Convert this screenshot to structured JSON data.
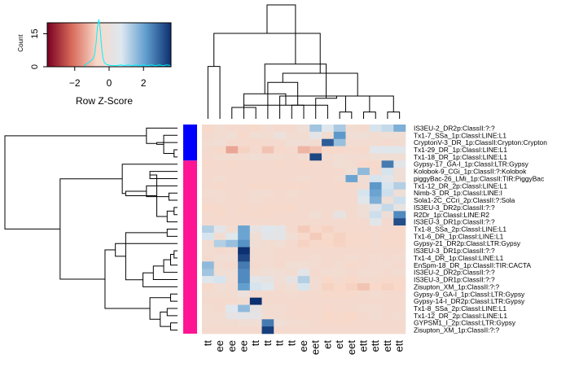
{
  "chart_data": {
    "type": "heatmap",
    "key": {
      "title": "Color Key and Histogram",
      "xlabel": "Row Z-Score",
      "ylabel": "Count",
      "xticks": [
        -2,
        0,
        2
      ],
      "yticks": [
        0,
        15
      ],
      "xlim": [
        -3.6,
        3.6
      ],
      "colors": [
        "#7a0020",
        "#d96b5c",
        "#f8d8c8",
        "#dde8f0",
        "#5e9ccd",
        "#0c3070"
      ],
      "histogram_color": "#00f5ff",
      "histogram_peak_z": -0.6
    },
    "columns": [
      "tt",
      "ee",
      "ee",
      "ee",
      "tt",
      "tt",
      "tt",
      "tt",
      "ee",
      "eet",
      "et",
      "et",
      "eet",
      "ett",
      "ett",
      "ett",
      "ett"
    ],
    "rows": [
      "IS3EU-2_DR2p:ClassII:?:?",
      "Tx1-7_SSa_1p:ClassI:LINE:L1",
      "CryptonV-3_DR_1p:ClassII:Crypton:Crypton",
      "Tx1-29_DR_1p:ClassI:LINE:L1",
      "Tx1-18_DR_1p:ClassI:LINE:L1",
      "Gypsy-17_GA-I_1p:ClassI:LTR:Gypsy",
      "Kolobok-9_CGi_1p:ClassII:?:Kolobok",
      "piggyBac-26_LMi_1p:ClassII:TIR:PiggyBac",
      "Tx1-12_DR_2p:ClassI:LINE:L1",
      "Nimb-3_DR_1p:ClassI:LINE:I",
      "Sola1-2C_CCri_2p:ClassII:?:Sola",
      "IS3EU-3_DR2p:ClassII:?:?",
      "R2Dr_1p:ClassI:LINE:R2",
      "IS3EU-3_DR1p:ClassII:?:?",
      "Tx1-8_SSa_2p:ClassI:LINE:L1",
      "Tx1-6_DR_1p:ClassI:LINE:L1",
      "Gypsy-21_DR2p:ClassI:LTR:Gypsy",
      "IS3EU-3_DR1p:ClassII:?:?",
      "Tx1-4_DR_1p:ClassI:LINE:L1",
      "EnSpm-18_DR_1p:ClassII:TIR:CACTA",
      "IS3EU-2_DR2p:ClassII:?:?",
      "IS3EU-3_DR1p:ClassII:?:?",
      "Zisupton_XM_1p:ClassII:?:?",
      "Gypsy-9_GA-I_1p:ClassI:LTR:Gypsy",
      "Gypsy-14-I_DR2p:ClassI:LTR:Gypsy",
      "Tx1-8_SSa_2p:ClassI:LINE:L1",
      "Tx1-12_DR_2p:ClassI:LINE:L1",
      "GYPSM1_I_2p:ClassI:LTR:Gypsy",
      "Zisupton_XM_1p:ClassII:?:?"
    ],
    "row_groups": [
      {
        "color": "#0000ff",
        "rows": 5
      },
      {
        "color": "#ff1493",
        "rows": 24
      }
    ],
    "values": [
      [
        -0.6,
        -0.4,
        -0.5,
        -0.5,
        -0.6,
        -0.4,
        -0.5,
        -0.5,
        -0.2,
        1.4,
        0.6,
        1.3,
        -0.4,
        -0.5,
        0.8,
        1.0,
        1.8
      ],
      [
        -0.5,
        -0.4,
        -0.3,
        -0.6,
        -0.3,
        -0.4,
        0.0,
        -0.4,
        -0.4,
        0.4,
        -0.4,
        2.2,
        -0.3,
        -0.2,
        -0.4,
        -0.2,
        -0.3
      ],
      [
        -0.4,
        -0.3,
        -0.5,
        -0.5,
        -0.6,
        -0.5,
        -0.5,
        -0.3,
        -0.3,
        -0.4,
        3.0,
        1.5,
        -0.4,
        -0.4,
        -0.4,
        -0.5,
        -0.4
      ],
      [
        -0.5,
        -0.6,
        -1.4,
        -0.8,
        -0.5,
        -1.0,
        -0.6,
        -0.5,
        -1.2,
        -1.0,
        -0.6,
        -0.6,
        -0.5,
        -0.6,
        0.5,
        0.6,
        0.5
      ],
      [
        -0.5,
        -0.4,
        -0.4,
        -0.4,
        -0.3,
        -0.4,
        -0.4,
        -0.5,
        -0.4,
        3.3,
        -0.4,
        -0.3,
        -0.4,
        -0.4,
        -0.3,
        -0.3,
        -0.3
      ],
      [
        -0.6,
        -0.5,
        -0.6,
        -0.5,
        -0.5,
        -0.5,
        -0.6,
        -0.5,
        -0.6,
        -0.5,
        -0.5,
        -0.3,
        -0.4,
        -0.6,
        -0.6,
        2.6,
        0.4
      ],
      [
        -0.5,
        -0.5,
        -0.5,
        -0.5,
        -0.5,
        -0.5,
        -0.5,
        -0.5,
        -0.5,
        -0.5,
        -0.5,
        -0.5,
        -0.2,
        1.6,
        -0.5,
        0.8,
        -0.2
      ],
      [
        -0.5,
        -0.4,
        -0.5,
        -0.5,
        -0.5,
        -0.5,
        -0.5,
        -0.5,
        -0.4,
        -0.5,
        -0.5,
        -0.4,
        2.0,
        -0.3,
        0.8,
        0.4,
        -0.2
      ],
      [
        -0.5,
        -0.6,
        -0.5,
        -0.5,
        -0.6,
        -0.6,
        -0.6,
        -0.6,
        -0.6,
        -0.5,
        -0.5,
        -0.6,
        -0.5,
        -0.4,
        2.2,
        0.8,
        1.2
      ],
      [
        -0.4,
        -0.4,
        -0.5,
        -0.5,
        -0.4,
        -0.4,
        -0.5,
        -0.4,
        -0.5,
        -0.5,
        -0.5,
        -0.5,
        -0.5,
        0.8,
        2.0,
        0.9,
        -0.2
      ],
      [
        -0.5,
        -0.4,
        -0.5,
        -0.5,
        -0.4,
        -0.5,
        -0.5,
        -0.5,
        -0.5,
        -0.5,
        -0.5,
        -0.5,
        -0.5,
        0.5,
        1.8,
        -0.2,
        0.9
      ],
      [
        -0.6,
        -0.6,
        -0.5,
        -0.6,
        -0.5,
        -0.6,
        -0.6,
        -0.6,
        -0.5,
        -0.5,
        -0.5,
        -0.5,
        -0.5,
        -0.2,
        0.4,
        1.0,
        0.2
      ],
      [
        -0.5,
        -0.6,
        -0.5,
        -0.5,
        -0.6,
        -0.6,
        -0.5,
        -0.5,
        -0.5,
        -0.3,
        -0.5,
        0.2,
        -0.5,
        -0.2,
        0.9,
        -0.2,
        2.4
      ],
      [
        -0.5,
        -0.5,
        -0.5,
        -0.5,
        -0.5,
        -0.5,
        -0.5,
        -0.5,
        -0.5,
        -0.5,
        -0.5,
        -0.5,
        -0.5,
        -0.5,
        0.5,
        -0.5,
        3.2
      ],
      [
        1.2,
        0.4,
        -0.4,
        2.0,
        0.2,
        0.6,
        0.4,
        -0.5,
        -0.9,
        -0.6,
        -0.8,
        -0.5,
        -0.6,
        -0.5,
        -0.5,
        -0.5,
        -0.6
      ],
      [
        0.8,
        -0.4,
        0.6,
        2.0,
        -0.3,
        0.4,
        0.4,
        -0.3,
        -0.6,
        -0.9,
        -0.6,
        -0.8,
        -0.6,
        -0.6,
        -0.5,
        -0.6,
        -0.6
      ],
      [
        -0.4,
        1.2,
        1.5,
        2.3,
        -0.3,
        -0.4,
        -0.3,
        -0.5,
        -0.8,
        -0.6,
        -0.7,
        -0.8,
        -0.6,
        -0.6,
        -0.5,
        -0.6,
        -0.6
      ],
      [
        -0.4,
        -0.5,
        -0.4,
        3.6,
        -0.4,
        -0.4,
        -0.5,
        -0.5,
        -0.5,
        -0.5,
        -0.5,
        -0.5,
        -0.5,
        -0.5,
        -0.5,
        -0.5,
        -0.5
      ],
      [
        -0.5,
        -0.3,
        -0.3,
        3.3,
        -0.4,
        -0.4,
        -0.5,
        -0.5,
        -0.5,
        -0.4,
        -0.5,
        -0.5,
        -0.4,
        -0.5,
        -0.4,
        -0.5,
        -0.4
      ],
      [
        1.6,
        -0.4,
        -0.5,
        2.6,
        -0.5,
        -0.4,
        -0.5,
        -0.3,
        -0.3,
        -0.4,
        -0.5,
        -0.4,
        -0.6,
        -0.5,
        -0.4,
        -0.4,
        -0.5
      ],
      [
        1.4,
        -0.3,
        -0.2,
        2.4,
        -0.4,
        -0.2,
        -0.3,
        -0.4,
        0.4,
        -0.5,
        -0.4,
        -0.4,
        -0.5,
        -0.4,
        -0.4,
        -0.5,
        -0.4
      ],
      [
        0.6,
        0.8,
        -0.3,
        2.4,
        0.4,
        0.2,
        -0.3,
        0.2,
        1.2,
        -0.4,
        -0.7,
        -0.5,
        -0.7,
        -0.5,
        -0.5,
        -0.6,
        -0.6
      ],
      [
        -0.6,
        -0.3,
        -0.4,
        2.1,
        0.8,
        0.6,
        -0.4,
        -0.3,
        0.8,
        -0.4,
        -0.8,
        -0.7,
        -0.8,
        -1.0,
        -0.7,
        -0.8,
        -0.7
      ],
      [
        -0.4,
        -0.4,
        -0.4,
        0.0,
        -0.5,
        -0.5,
        -0.5,
        -0.4,
        -0.5,
        -0.5,
        -0.6,
        -0.6,
        -0.6,
        -0.5,
        -0.4,
        -0.5,
        -0.5
      ],
      [
        -0.5,
        -0.5,
        -0.5,
        -0.4,
        3.6,
        -0.5,
        -0.5,
        -0.5,
        -0.5,
        -0.5,
        -0.5,
        -0.5,
        -0.5,
        -0.5,
        -0.5,
        -0.5,
        -0.5
      ],
      [
        -0.4,
        -0.5,
        0.6,
        1.6,
        0.2,
        -0.4,
        -0.4,
        -0.5,
        -0.6,
        -0.5,
        -0.6,
        -0.5,
        -0.5,
        -0.4,
        -0.4,
        -0.5,
        -0.5
      ],
      [
        -0.4,
        -0.4,
        0.3,
        0.4,
        0.3,
        -0.4,
        -0.4,
        -0.5,
        -0.6,
        -0.5,
        -0.7,
        -0.6,
        -0.7,
        -0.5,
        -0.4,
        -0.5,
        -0.4
      ],
      [
        -0.4,
        -0.4,
        -0.4,
        -0.3,
        -0.3,
        2.6,
        -0.2,
        -0.4,
        -0.4,
        -0.5,
        -0.6,
        -0.6,
        -0.6,
        -0.5,
        -0.5,
        -0.5,
        -0.5
      ],
      [
        -0.5,
        -0.5,
        -0.5,
        -0.5,
        -0.5,
        3.4,
        -0.5,
        -0.5,
        -0.5,
        -0.5,
        -0.5,
        -0.5,
        -0.5,
        -0.5,
        -0.5,
        -0.5,
        -0.5
      ]
    ],
    "col_dendrogram": [
      [
        2,
        4,
        0.1
      ],
      [
        11,
        12,
        0.06
      ],
      [
        13,
        14,
        0.06
      ],
      [
        15,
        16,
        0.06
      ],
      [
        7,
        8,
        0.12
      ],
      [
        6,
        20,
        0.2
      ],
      [
        10,
        17,
        0.12
      ],
      [
        19,
        18,
        0.2
      ],
      [
        5,
        21,
        0.32
      ],
      [
        9,
        22,
        0.18
      ],
      [
        3,
        23,
        0.22
      ],
      [
        24,
        25,
        0.4
      ],
      [
        0,
        1,
        0.46
      ],
      [
        27,
        26,
        0.48
      ],
      [
        29,
        28,
        0.75
      ],
      [
        30,
        31,
        1.0
      ]
    ],
    "row_dendrogram": [
      [
        3,
        4,
        0.02
      ],
      [
        29,
        1,
        0.08
      ],
      [
        30,
        2,
        0.12
      ],
      [
        31,
        0,
        0.18
      ],
      [
        9,
        10,
        0.05
      ],
      [
        8,
        33,
        0.18
      ],
      [
        6,
        7,
        0.16
      ],
      [
        11,
        12,
        0.02
      ],
      [
        13,
        36,
        0.06
      ],
      [
        35,
        37,
        0.12
      ],
      [
        34,
        38,
        0.3
      ],
      [
        5,
        39,
        0.32
      ],
      [
        23,
        24,
        0.04
      ],
      [
        25,
        26,
        0.06
      ],
      [
        27,
        28,
        0.04
      ],
      [
        42,
        43,
        0.1
      ],
      [
        41,
        44,
        0.16
      ],
      [
        14,
        15,
        0.06
      ],
      [
        17,
        18,
        0.02
      ],
      [
        47,
        19,
        0.04
      ],
      [
        48,
        20,
        0.08
      ],
      [
        49,
        21,
        0.14
      ],
      [
        50,
        22,
        0.2
      ],
      [
        46,
        51,
        0.3
      ],
      [
        16,
        52,
        0.36
      ],
      [
        45,
        53,
        0.42
      ],
      [
        40,
        54,
        0.68
      ],
      [
        32,
        55,
        1.0
      ]
    ]
  }
}
